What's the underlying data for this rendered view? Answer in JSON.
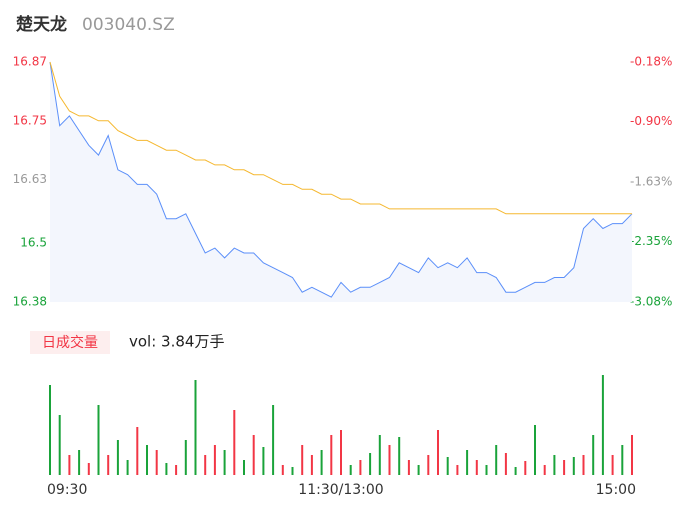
{
  "header": {
    "name": "楚天龙",
    "code": "003040.SZ"
  },
  "chart_data": [
    {
      "type": "line",
      "x": [
        0,
        4,
        8,
        12,
        16,
        20,
        24,
        28,
        32,
        36,
        40,
        44,
        48,
        52,
        56,
        60,
        64,
        68,
        72,
        76,
        80,
        84,
        88,
        92,
        96,
        100,
        104,
        108,
        112,
        116,
        120,
        124,
        128,
        132,
        136,
        140,
        144,
        148,
        152,
        156,
        160,
        164,
        168,
        172,
        176,
        180,
        184,
        188,
        192,
        196,
        200,
        204,
        208,
        212,
        216,
        220,
        224,
        228,
        232,
        236,
        240
      ],
      "xlim": [
        0,
        240
      ],
      "ylim": [
        16.38,
        16.87
      ],
      "yticks": [
        16.87,
        16.75,
        16.63,
        16.5,
        16.38
      ],
      "ytick_colors": [
        "#f23645",
        "#f23645",
        "#999999",
        "#1aa33a",
        "#1aa33a"
      ],
      "y2lim": [
        -3.08,
        -0.18
      ],
      "y2ticks": [
        {
          "value": -0.18,
          "label": "-0.18%"
        },
        {
          "value": -0.9,
          "label": "-0.90%"
        },
        {
          "value": -1.63,
          "label": "-1.63%"
        },
        {
          "value": -2.35,
          "label": "-2.35%"
        },
        {
          "value": -3.08,
          "label": "-3.08%"
        }
      ],
      "y2tick_colors": [
        "#f23645",
        "#f23645",
        "#999999",
        "#1aa33a",
        "#1aa33a"
      ],
      "area_color": "#f3f6fd",
      "series": [
        {
          "color": "#5b8ff9",
          "values": [
            16.87,
            16.74,
            16.76,
            16.73,
            16.7,
            16.68,
            16.72,
            16.65,
            16.64,
            16.62,
            16.62,
            16.6,
            16.55,
            16.55,
            16.56,
            16.52,
            16.48,
            16.49,
            16.47,
            16.49,
            16.48,
            16.48,
            16.46,
            16.45,
            16.44,
            16.43,
            16.4,
            16.41,
            16.4,
            16.39,
            16.42,
            16.4,
            16.41,
            16.41,
            16.42,
            16.43,
            16.46,
            16.45,
            16.44,
            16.47,
            16.45,
            16.46,
            16.45,
            16.47,
            16.44,
            16.44,
            16.43,
            16.4,
            16.4,
            16.41,
            16.42,
            16.42,
            16.43,
            16.43,
            16.45,
            16.53,
            16.55,
            16.53,
            16.54,
            16.54,
            16.56
          ]
        },
        {
          "color": "#f5b830",
          "values": [
            16.87,
            16.8,
            16.77,
            16.76,
            16.76,
            16.75,
            16.75,
            16.73,
            16.72,
            16.71,
            16.71,
            16.7,
            16.69,
            16.69,
            16.68,
            16.67,
            16.67,
            16.66,
            16.66,
            16.65,
            16.65,
            16.64,
            16.64,
            16.63,
            16.62,
            16.62,
            16.61,
            16.61,
            16.6,
            16.6,
            16.59,
            16.59,
            16.58,
            16.58,
            16.58,
            16.57,
            16.57,
            16.57,
            16.57,
            16.57,
            16.57,
            16.57,
            16.57,
            16.57,
            16.57,
            16.57,
            16.57,
            16.56,
            16.56,
            16.56,
            16.56,
            16.56,
            16.56,
            16.56,
            16.56,
            16.56,
            16.56,
            16.56,
            16.56,
            16.56,
            16.56
          ]
        }
      ]
    },
    {
      "type": "bar",
      "legend_label": "日成交量",
      "annotation": "vol: 3.84万手",
      "x": [
        0,
        4,
        8,
        12,
        16,
        20,
        24,
        28,
        32,
        36,
        40,
        44,
        48,
        52,
        56,
        60,
        64,
        68,
        72,
        76,
        80,
        84,
        88,
        92,
        96,
        100,
        104,
        108,
        112,
        116,
        120,
        124,
        128,
        132,
        136,
        140,
        144,
        148,
        152,
        156,
        160,
        164,
        168,
        172,
        176,
        180,
        184,
        188,
        192,
        196,
        200,
        204,
        208,
        212,
        216,
        220,
        224,
        228,
        232,
        236,
        240
      ],
      "xlim": [
        0,
        240
      ],
      "ylim": [
        0,
        105
      ],
      "xticks": [
        {
          "value": 0,
          "label": "09:30"
        },
        {
          "value": 120,
          "label": "11:30/13:00"
        },
        {
          "value": 240,
          "label": "15:00"
        }
      ],
      "values": [
        90,
        60,
        20,
        25,
        12,
        70,
        20,
        35,
        15,
        48,
        30,
        25,
        12,
        10,
        35,
        95,
        20,
        30,
        25,
        65,
        15,
        40,
        28,
        70,
        10,
        8,
        30,
        20,
        25,
        40,
        45,
        10,
        15,
        22,
        40,
        30,
        38,
        15,
        10,
        20,
        45,
        18,
        10,
        25,
        15,
        10,
        30,
        22,
        8,
        14,
        50,
        10,
        20,
        15,
        18,
        20,
        40,
        100,
        20,
        30,
        40
      ],
      "colors": [
        "#1aa33a",
        "#1aa33a",
        "#f23645",
        "#1aa33a",
        "#f23645",
        "#1aa33a",
        "#f23645",
        "#1aa33a",
        "#1aa33a",
        "#f23645",
        "#1aa33a",
        "#f23645",
        "#1aa33a",
        "#f23645",
        "#1aa33a",
        "#1aa33a",
        "#f23645",
        "#f23645",
        "#1aa33a",
        "#f23645",
        "#1aa33a",
        "#f23645",
        "#1aa33a",
        "#1aa33a",
        "#f23645",
        "#1aa33a",
        "#f23645",
        "#f23645",
        "#1aa33a",
        "#f23645",
        "#f23645",
        "#1aa33a",
        "#f23645",
        "#1aa33a",
        "#1aa33a",
        "#f23645",
        "#1aa33a",
        "#f23645",
        "#1aa33a",
        "#f23645",
        "#f23645",
        "#1aa33a",
        "#f23645",
        "#1aa33a",
        "#f23645",
        "#1aa33a",
        "#1aa33a",
        "#f23645",
        "#1aa33a",
        "#f23645",
        "#1aa33a",
        "#f23645",
        "#1aa33a",
        "#f23645",
        "#1aa33a",
        "#f23645",
        "#1aa33a",
        "#1aa33a",
        "#f23645",
        "#1aa33a",
        "#f23645"
      ]
    }
  ]
}
